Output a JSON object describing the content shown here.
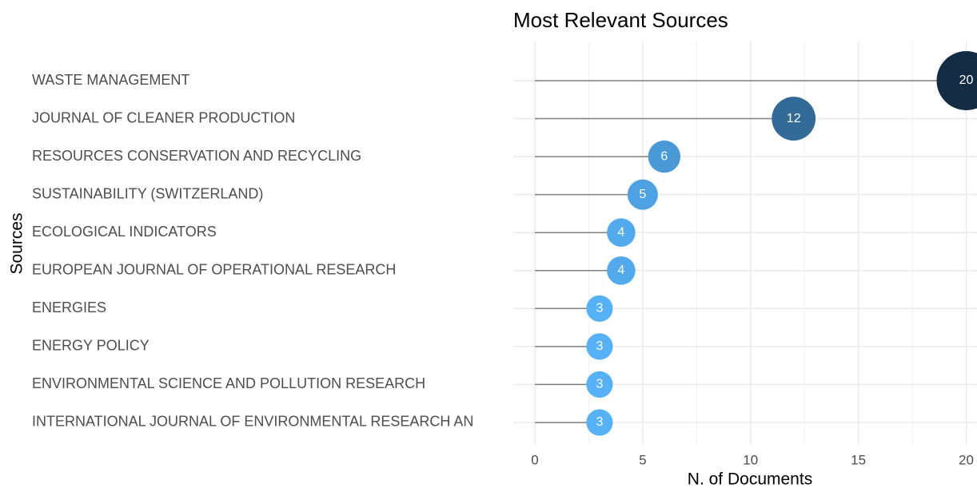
{
  "chart_data": {
    "type": "lollipop",
    "title": "Most Relevant Sources",
    "xlabel": "N. of Documents",
    "ylabel": "Sources",
    "categories": [
      "WASTE MANAGEMENT",
      "JOURNAL OF CLEANER PRODUCTION",
      "RESOURCES CONSERVATION AND RECYCLING",
      "SUSTAINABILITY (SWITZERLAND)",
      "ECOLOGICAL INDICATORS",
      "EUROPEAN JOURNAL OF OPERATIONAL RESEARCH",
      "ENERGIES",
      "ENERGY POLICY",
      "ENVIRONMENTAL SCIENCE AND POLLUTION RESEARCH",
      "INTERNATIONAL JOURNAL OF ENVIRONMENTAL RESEARCH AN"
    ],
    "values": [
      20,
      12,
      6,
      5,
      4,
      4,
      3,
      3,
      3,
      3
    ],
    "color_low": "#56b1f7",
    "color_high": "#132b43",
    "stem_color": "#808080",
    "xlim": [
      -1,
      20.5
    ],
    "xticks": [
      0,
      5,
      10,
      15,
      20
    ],
    "grid": true
  }
}
